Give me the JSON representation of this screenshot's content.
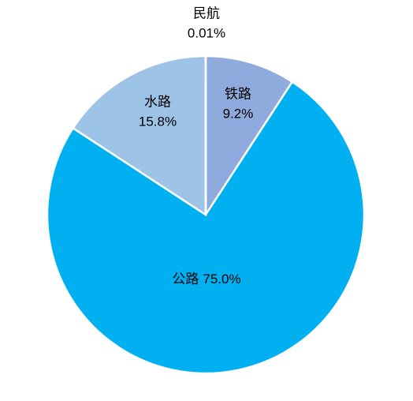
{
  "chart_data": {
    "type": "pie",
    "categories": [
      "铁路",
      "公路",
      "水路",
      "民航"
    ],
    "values": [
      9.2,
      75.0,
      15.8,
      0.01
    ],
    "value_labels": [
      "9.2%",
      "75.0%",
      "15.8%",
      "0.01%"
    ],
    "colors": [
      "#8faadc",
      "#00b0f0",
      "#9dc3e6",
      "#7f7f7f"
    ]
  }
}
